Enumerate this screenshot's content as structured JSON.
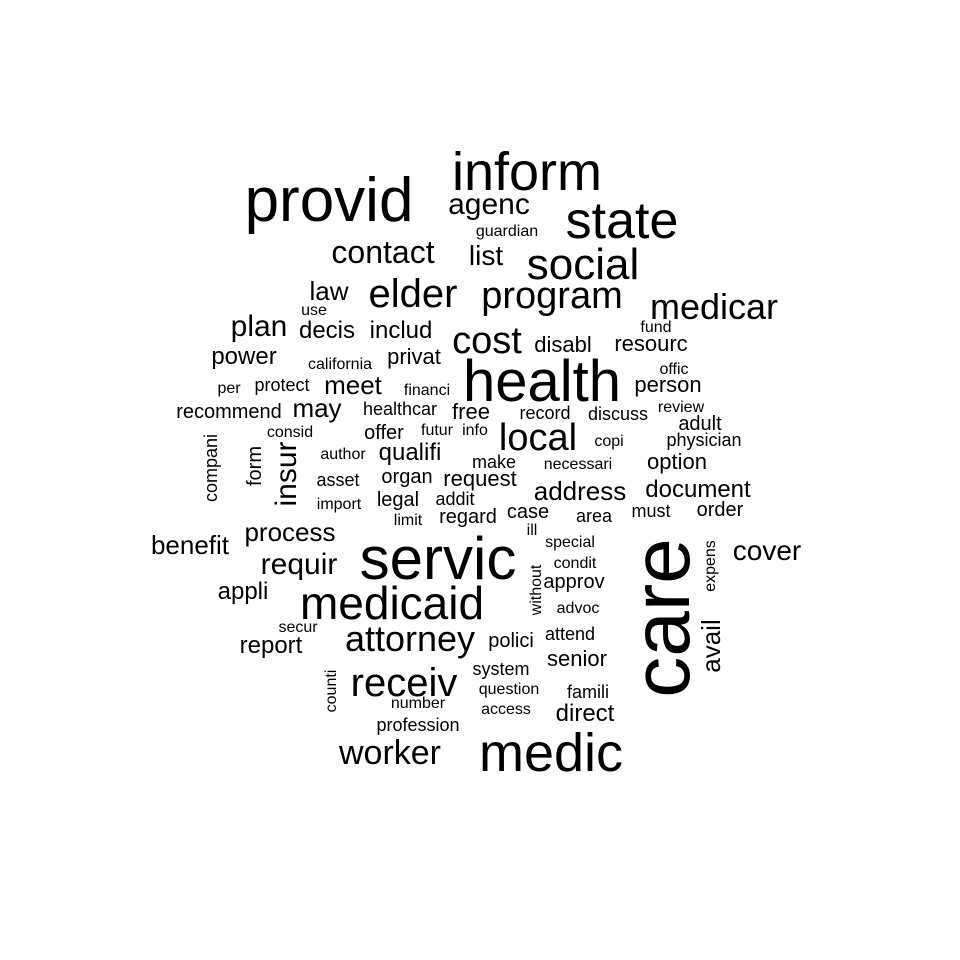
{
  "text_color": "#000000",
  "background": "#ffffff",
  "words": [
    "care",
    "servic",
    "health",
    "medic",
    "inform",
    "provid",
    "state",
    "medicaid",
    "social",
    "receiv",
    "program",
    "elder",
    "medicar",
    "attorney",
    "cost",
    "local",
    "worker",
    "contact",
    "agenc",
    "insur",
    "requir",
    "process",
    "address",
    "document",
    "cover",
    "benefit",
    "qualifi",
    "avail",
    "plan",
    "meet",
    "may",
    "decis",
    "includ",
    "power",
    "list",
    "law",
    "privat",
    "disabl",
    "resourc",
    "person",
    "recommend",
    "request",
    "legal",
    "regard",
    "case",
    "senior",
    "direct",
    "option",
    "appli",
    "report",
    "organ",
    "offer",
    "free",
    "record",
    "discuss",
    "adult",
    "physician",
    "make",
    "necessari",
    "copi",
    "healthcar",
    "futur",
    "info",
    "author",
    "consid",
    "asset",
    "import",
    "addit",
    "limit",
    "must",
    "area",
    "order",
    "special",
    "condit",
    "approv",
    "ill",
    "without",
    "advoc",
    "attend",
    "polici",
    "system",
    "question",
    "famili",
    "access",
    "profession",
    "number",
    "counti",
    "secur",
    "expens",
    "compani",
    "form",
    "per",
    "protect",
    "california",
    "financi",
    "use",
    "guardian",
    "fund",
    "offic",
    "review"
  ]
}
